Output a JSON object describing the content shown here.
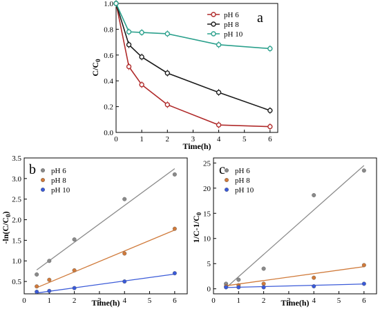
{
  "colors": {
    "pH6_a": "#b02a2a",
    "pH8_a": "#1a1a1a",
    "pH10_a": "#2aa08c",
    "pH6_bc": "#8a8a8a",
    "pH8_bc": "#d07a3a",
    "pH10_bc": "#3a5ad8"
  },
  "chart_data": [
    {
      "type": "line",
      "panel": "a",
      "xlabel": "Time(h)",
      "ylabel": "C/C0",
      "xlim": [
        0,
        6.3
      ],
      "ylim": [
        0,
        1.0
      ],
      "xticks": [
        0,
        1,
        2,
        3,
        4,
        5,
        6
      ],
      "yticks": [
        0.0,
        0.2,
        0.4,
        0.6,
        0.8,
        1.0
      ],
      "legend_position": "top-right",
      "series": [
        {
          "name": "pH 6",
          "x": [
            0,
            0.5,
            1,
            2,
            4,
            6
          ],
          "y": [
            1.0,
            0.51,
            0.37,
            0.215,
            0.058,
            0.045
          ]
        },
        {
          "name": "pH 8",
          "x": [
            0,
            0.5,
            1,
            2,
            4,
            6
          ],
          "y": [
            1.0,
            0.68,
            0.585,
            0.46,
            0.31,
            0.17
          ]
        },
        {
          "name": "pH 10",
          "x": [
            0,
            0.5,
            1,
            2,
            4,
            6
          ],
          "y": [
            1.0,
            0.78,
            0.775,
            0.765,
            0.68,
            0.65
          ]
        }
      ]
    },
    {
      "type": "scatter",
      "panel": "b",
      "xlabel": "Time(h)",
      "ylabel": "-ln(C/C0)",
      "xlim": [
        0,
        6.5
      ],
      "ylim": [
        0.2,
        3.5
      ],
      "xticks": [
        0,
        1,
        2,
        3,
        4,
        5,
        6
      ],
      "yticks": [
        0.5,
        1.0,
        1.5,
        2.0,
        2.5,
        3.0,
        3.5
      ],
      "legend_position": "top-left",
      "series": [
        {
          "name": "pH 6",
          "x": [
            0.5,
            1,
            2,
            4,
            6
          ],
          "y": [
            0.67,
            1.0,
            1.52,
            2.5,
            3.1
          ],
          "fit": [
            [
              0.5,
              0.78
            ],
            [
              6,
              3.24
            ]
          ]
        },
        {
          "name": "pH 8",
          "x": [
            0.5,
            1,
            2,
            4,
            6
          ],
          "y": [
            0.38,
            0.54,
            0.77,
            1.18,
            1.78
          ],
          "fit": [
            [
              0.5,
              0.35
            ],
            [
              6,
              1.75
            ]
          ]
        },
        {
          "name": "pH 10",
          "x": [
            0.5,
            1,
            2,
            4,
            6
          ],
          "y": [
            0.25,
            0.27,
            0.34,
            0.5,
            0.7
          ],
          "fit": [
            [
              0.5,
              0.22
            ],
            [
              6,
              0.68
            ]
          ]
        }
      ]
    },
    {
      "type": "scatter",
      "panel": "c",
      "xlabel": "Time(h)",
      "ylabel": "1/C-1/C0",
      "xlim": [
        0,
        6.5
      ],
      "ylim": [
        -1,
        26
      ],
      "xticks": [
        0,
        1,
        2,
        3,
        4,
        5,
        6
      ],
      "yticks": [
        0,
        5,
        10,
        15,
        20,
        25
      ],
      "legend_position": "top-left",
      "series": [
        {
          "name": "pH 6",
          "x": [
            0.5,
            1,
            2,
            4,
            6
          ],
          "y": [
            1.0,
            1.8,
            4.0,
            18.6,
            23.5
          ],
          "fit": [
            [
              0.5,
              0.2
            ],
            [
              6,
              24.5
            ]
          ]
        },
        {
          "name": "pH 8",
          "x": [
            0.5,
            1,
            2,
            4,
            6
          ],
          "y": [
            0.5,
            0.7,
            1.0,
            2.2,
            4.7
          ],
          "fit": [
            [
              0.5,
              0.6
            ],
            [
              6,
              4.4
            ]
          ]
        },
        {
          "name": "pH 10",
          "x": [
            0.5,
            1,
            2,
            4,
            6
          ],
          "y": [
            0.3,
            0.3,
            0.3,
            0.5,
            1.0
          ],
          "fit": [
            [
              0.5,
              0.25
            ],
            [
              6,
              0.95
            ]
          ]
        }
      ]
    }
  ],
  "labels": {
    "a": "a",
    "b": "b",
    "c": "c",
    "a_xlabel": "Time(h)",
    "b_xlabel": "Time(h)",
    "c_xlabel": "Time(h)",
    "a_ylabel": "C/C",
    "a_ylabel_sub": "0",
    "b_ylabel": "-ln(C/C",
    "b_ylabel_sub": "0",
    "b_ylabel_end": ")",
    "c_ylabel": "1/C-1/C",
    "c_ylabel_sub": "0"
  }
}
